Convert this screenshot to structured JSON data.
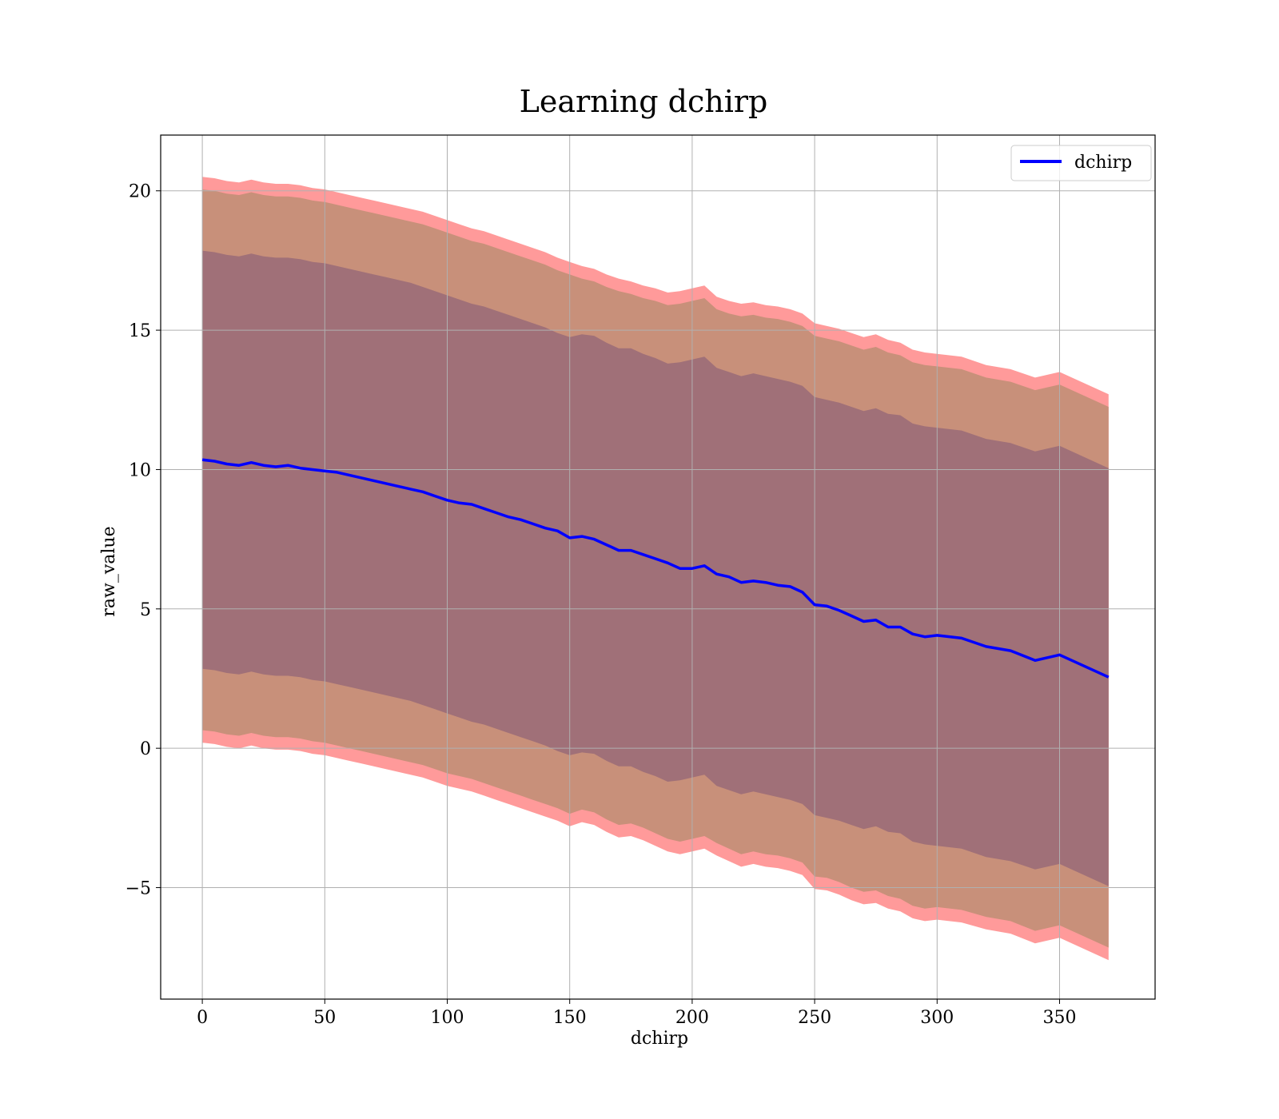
{
  "chart_data": {
    "type": "line",
    "title": "Learning dchirp",
    "xlabel": "dchirp",
    "ylabel": "raw_value",
    "xlim": [
      -17,
      389
    ],
    "ylim": [
      -9,
      22
    ],
    "grid": true,
    "legend_position": "top-right",
    "xticks": [
      0,
      50,
      100,
      150,
      200,
      250,
      300,
      350
    ],
    "xtick_labels": [
      "0",
      "50",
      "100",
      "150",
      "200",
      "250",
      "300",
      "350"
    ],
    "yticks": [
      -5,
      0,
      5,
      10,
      15,
      20
    ],
    "ytick_labels": [
      "−5",
      "0",
      "5",
      "10",
      "15",
      "20"
    ],
    "series": [
      {
        "name": "dchirp",
        "color": "#0000ff",
        "x": [
          0,
          5,
          10,
          15,
          20,
          25,
          30,
          35,
          40,
          45,
          50,
          55,
          60,
          65,
          70,
          75,
          80,
          85,
          90,
          95,
          100,
          105,
          110,
          115,
          120,
          125,
          130,
          135,
          140,
          145,
          150,
          155,
          160,
          165,
          170,
          175,
          180,
          185,
          190,
          195,
          200,
          205,
          210,
          215,
          220,
          225,
          230,
          235,
          240,
          245,
          250,
          255,
          260,
          265,
          270,
          275,
          280,
          285,
          290,
          295,
          300,
          310,
          320,
          330,
          340,
          350,
          370
        ],
        "mean": [
          10.35,
          10.3,
          10.2,
          10.15,
          10.25,
          10.15,
          10.1,
          10.15,
          10.05,
          10.0,
          9.95,
          9.9,
          9.8,
          9.7,
          9.6,
          9.5,
          9.4,
          9.3,
          9.2,
          9.05,
          8.9,
          8.8,
          8.75,
          8.6,
          8.45,
          8.3,
          8.2,
          8.05,
          7.9,
          7.8,
          7.55,
          7.6,
          7.5,
          7.3,
          7.1,
          7.1,
          6.95,
          6.8,
          6.65,
          6.45,
          6.45,
          6.55,
          6.25,
          6.15,
          5.95,
          6.0,
          5.95,
          5.85,
          5.8,
          5.6,
          5.15,
          5.1,
          4.95,
          4.75,
          4.55,
          4.6,
          4.35,
          4.35,
          4.1,
          4.0,
          4.05,
          3.95,
          3.65,
          3.5,
          3.15,
          3.35,
          2.55
        ],
        "outer_upper": [
          20.5,
          20.45,
          20.35,
          20.3,
          20.4,
          20.3,
          20.25,
          20.25,
          20.2,
          20.1,
          20.05,
          19.95,
          19.85,
          19.75,
          19.65,
          19.55,
          19.45,
          19.35,
          19.25,
          19.1,
          18.95,
          18.8,
          18.65,
          18.55,
          18.4,
          18.25,
          18.1,
          17.95,
          17.8,
          17.6,
          17.45,
          17.3,
          17.2,
          17.0,
          16.85,
          16.75,
          16.6,
          16.5,
          16.35,
          16.4,
          16.5,
          16.6,
          16.2,
          16.05,
          15.95,
          16.0,
          15.9,
          15.85,
          15.75,
          15.6,
          15.25,
          15.15,
          15.05,
          14.9,
          14.75,
          14.85,
          14.65,
          14.55,
          14.3,
          14.2,
          14.15,
          14.05,
          13.75,
          13.6,
          13.3,
          13.5,
          12.7
        ],
        "outer_lower": [
          0.2,
          0.15,
          0.05,
          0.0,
          0.1,
          0.0,
          -0.05,
          -0.05,
          -0.1,
          -0.2,
          -0.25,
          -0.35,
          -0.45,
          -0.55,
          -0.65,
          -0.75,
          -0.85,
          -0.95,
          -1.05,
          -1.2,
          -1.35,
          -1.45,
          -1.55,
          -1.7,
          -1.85,
          -2.0,
          -2.15,
          -2.3,
          -2.45,
          -2.6,
          -2.8,
          -2.65,
          -2.75,
          -3.0,
          -3.2,
          -3.15,
          -3.3,
          -3.5,
          -3.7,
          -3.8,
          -3.7,
          -3.6,
          -3.85,
          -4.05,
          -4.25,
          -4.15,
          -4.25,
          -4.3,
          -4.4,
          -4.55,
          -5.05,
          -5.1,
          -5.25,
          -5.45,
          -5.6,
          -5.55,
          -5.75,
          -5.85,
          -6.1,
          -6.2,
          -6.15,
          -6.25,
          -6.5,
          -6.65,
          -7.0,
          -6.8,
          -7.6
        ],
        "mid_upper": [
          20.05,
          20.0,
          19.9,
          19.85,
          19.95,
          19.85,
          19.8,
          19.8,
          19.75,
          19.65,
          19.6,
          19.5,
          19.4,
          19.3,
          19.2,
          19.1,
          19.0,
          18.9,
          18.8,
          18.65,
          18.5,
          18.35,
          18.2,
          18.1,
          17.95,
          17.8,
          17.65,
          17.5,
          17.35,
          17.15,
          17.0,
          16.85,
          16.75,
          16.55,
          16.4,
          16.3,
          16.15,
          16.05,
          15.9,
          15.95,
          16.05,
          16.15,
          15.75,
          15.6,
          15.5,
          15.55,
          15.45,
          15.4,
          15.3,
          15.15,
          14.8,
          14.7,
          14.6,
          14.45,
          14.3,
          14.4,
          14.2,
          14.1,
          13.85,
          13.75,
          13.7,
          13.6,
          13.3,
          13.15,
          12.85,
          13.05,
          12.25
        ],
        "mid_lower": [
          0.65,
          0.6,
          0.5,
          0.45,
          0.55,
          0.45,
          0.4,
          0.4,
          0.35,
          0.25,
          0.2,
          0.1,
          0.0,
          -0.1,
          -0.2,
          -0.3,
          -0.4,
          -0.5,
          -0.6,
          -0.75,
          -0.9,
          -1.0,
          -1.1,
          -1.25,
          -1.4,
          -1.55,
          -1.7,
          -1.85,
          -2.0,
          -2.15,
          -2.35,
          -2.2,
          -2.3,
          -2.55,
          -2.75,
          -2.7,
          -2.85,
          -3.05,
          -3.25,
          -3.35,
          -3.25,
          -3.15,
          -3.4,
          -3.6,
          -3.8,
          -3.7,
          -3.8,
          -3.85,
          -3.95,
          -4.1,
          -4.6,
          -4.65,
          -4.8,
          -5.0,
          -5.15,
          -5.1,
          -5.3,
          -5.4,
          -5.65,
          -5.75,
          -5.7,
          -5.8,
          -6.05,
          -6.2,
          -6.55,
          -6.35,
          -7.15
        ],
        "inner_upper": [
          17.85,
          17.8,
          17.7,
          17.65,
          17.75,
          17.65,
          17.6,
          17.6,
          17.55,
          17.45,
          17.4,
          17.3,
          17.2,
          17.1,
          17.0,
          16.9,
          16.8,
          16.7,
          16.55,
          16.4,
          16.25,
          16.1,
          15.95,
          15.85,
          15.7,
          15.55,
          15.4,
          15.25,
          15.1,
          14.9,
          14.75,
          14.85,
          14.8,
          14.55,
          14.35,
          14.35,
          14.15,
          14.0,
          13.8,
          13.85,
          13.95,
          14.05,
          13.65,
          13.5,
          13.35,
          13.45,
          13.35,
          13.25,
          13.15,
          13.0,
          12.6,
          12.5,
          12.4,
          12.25,
          12.1,
          12.2,
          12.0,
          11.95,
          11.65,
          11.55,
          11.5,
          11.4,
          11.1,
          10.95,
          10.65,
          10.85,
          10.05
        ],
        "inner_lower": [
          2.85,
          2.8,
          2.7,
          2.65,
          2.75,
          2.65,
          2.6,
          2.6,
          2.55,
          2.45,
          2.4,
          2.3,
          2.2,
          2.1,
          2.0,
          1.9,
          1.8,
          1.7,
          1.55,
          1.4,
          1.25,
          1.1,
          0.95,
          0.85,
          0.7,
          0.55,
          0.4,
          0.25,
          0.1,
          -0.1,
          -0.25,
          -0.15,
          -0.2,
          -0.45,
          -0.65,
          -0.65,
          -0.85,
          -1.0,
          -1.2,
          -1.15,
          -1.05,
          -0.95,
          -1.35,
          -1.5,
          -1.65,
          -1.55,
          -1.65,
          -1.75,
          -1.85,
          -2.0,
          -2.4,
          -2.5,
          -2.6,
          -2.75,
          -2.9,
          -2.8,
          -3.0,
          -3.05,
          -3.35,
          -3.45,
          -3.5,
          -3.6,
          -3.9,
          -4.05,
          -4.35,
          -4.15,
          -4.95
        ]
      }
    ],
    "band_colors": {
      "outer": "#ff9a9a",
      "mid": "#c8907a",
      "inner": "#a07078"
    }
  }
}
